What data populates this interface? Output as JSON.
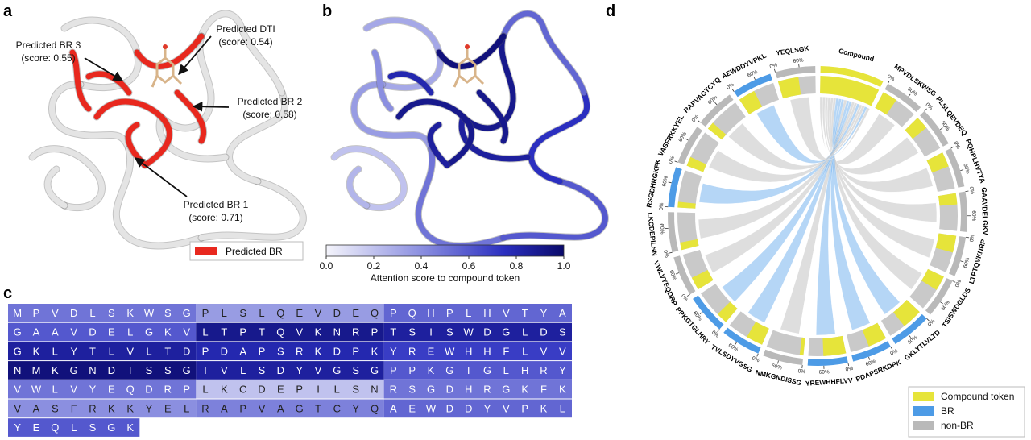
{
  "panel_a": {
    "label": "a",
    "annotations": [
      {
        "text": "Predicted BR 3",
        "score": "(score: 0.55)"
      },
      {
        "text": "Predicted DTI",
        "score": "(score: 0.54)"
      },
      {
        "text": "Predicted BR 2",
        "score": "(score: 0.58)"
      },
      {
        "text": "Predicted BR 1",
        "score": "(score: 0.71)"
      }
    ],
    "legend": "Predicted BR"
  },
  "panel_b": {
    "label": "b",
    "colorbar_label": "Attention score to compound token",
    "colorbar_ticks": [
      {
        "value": 0,
        "label": "0.0"
      },
      0.2,
      0.4,
      0.6,
      0.8,
      {
        "value": 1,
        "label": "1.0"
      }
    ],
    "colorbar_lim": [
      0,
      1
    ]
  },
  "panel_c": {
    "label": "c",
    "segments": [
      {
        "sequence": "MPVDLSKWSG",
        "attention": 0.5
      },
      {
        "sequence": "PLSLQEVDEQ",
        "attention": 0.35
      },
      {
        "sequence": "PQHPLHVTYA",
        "attention": 0.55
      },
      {
        "sequence": "GAAVDELGKV",
        "attention": 0.6
      },
      {
        "sequence": "LTPTQVKNRP",
        "attention": 0.9
      },
      {
        "sequence": "TSISWDGLDS",
        "attention": 0.85
      },
      {
        "sequence": "GKLYTLVLTD",
        "attention": 0.85
      },
      {
        "sequence": "PDAPSRKDPK",
        "attention": 0.8
      },
      {
        "sequence": "YREWHHFLVV",
        "attention": 0.7
      },
      {
        "sequence": "NMKGNDISSG",
        "attention": 0.95
      },
      {
        "sequence": "TVLSDYVGSG",
        "attention": 0.85
      },
      {
        "sequence": "PPKGTGLHRY",
        "attention": 0.6
      },
      {
        "sequence": "VWLVYEQDRP",
        "attention": 0.5
      },
      {
        "sequence": "LKCDEPILSN",
        "attention": 0.2
      },
      {
        "sequence": "RSGDHRGKFK",
        "attention": 0.5
      },
      {
        "sequence": "VASFRKKYEL",
        "attention": 0.4
      },
      {
        "sequence": "RAPVAGTCYQ",
        "attention": 0.45
      },
      {
        "sequence": "AEWDDYVPKL",
        "attention": 0.55
      },
      {
        "sequence": "YEQLSGK",
        "attention": 0.6
      }
    ]
  },
  "panel_d": {
    "label": "d",
    "compound_label": "Compound",
    "ring_ticks": [
      {
        "value": 0,
        "label": "0%"
      },
      {
        "value": 60,
        "label": "60%"
      }
    ],
    "legend": [
      {
        "name": "Compound token",
        "color": "#e6e43a"
      },
      {
        "name": "BR",
        "color": "#4d9be6"
      },
      {
        "name": "non-BR",
        "color": "#b9b9b9"
      }
    ],
    "segments": [
      {
        "name": "MPVDLSKWSG",
        "class": "non-BR",
        "compound_token": 40
      },
      {
        "name": "PLSLQEVDEQ",
        "class": "non-BR",
        "compound_token": 35
      },
      {
        "name": "PQHPLHVTYA",
        "class": "non-BR",
        "compound_token": 40
      },
      {
        "name": "GAAVDELGKV",
        "class": "non-BR",
        "compound_token": 30
      },
      {
        "name": "LTPTQVKNRP",
        "class": "non-BR",
        "compound_token": 45
      },
      {
        "name": "TSISWDGLDS",
        "class": "non-BR",
        "compound_token": 40
      },
      {
        "name": "GKLYTLVLTD",
        "class": "BR",
        "compound_token": 55
      },
      {
        "name": "PDAPSRKDPK",
        "class": "BR",
        "compound_token": 50
      },
      {
        "name": "YREWHHFLVV",
        "class": "BR",
        "compound_token": 60
      },
      {
        "name": "NMKGNDISSG",
        "class": "non-BR",
        "compound_token": 10
      },
      {
        "name": "TVLSDYVGSG",
        "class": "BR",
        "compound_token": 45
      },
      {
        "name": "PPKGTGLHRY",
        "class": "BR",
        "compound_token": 30
      },
      {
        "name": "VWLVYEQDRP",
        "class": "non-BR",
        "compound_token": 35
      },
      {
        "name": "LKCDEPILSN",
        "class": "non-BR",
        "compound_token": 20
      },
      {
        "name": "RSGDHRGKFK",
        "class": "BR",
        "compound_token": 15
      },
      {
        "name": "VASFRKKYEL",
        "class": "non-BR",
        "compound_token": 25
      },
      {
        "name": "RAPVAGTCYQ",
        "class": "non-BR",
        "compound_token": 20
      },
      {
        "name": "AEWDDYVPKL",
        "class": "BR",
        "compound_token": 45
      },
      {
        "name": "YEQLSGK",
        "class": "non-BR",
        "compound_token": 55
      }
    ]
  }
}
